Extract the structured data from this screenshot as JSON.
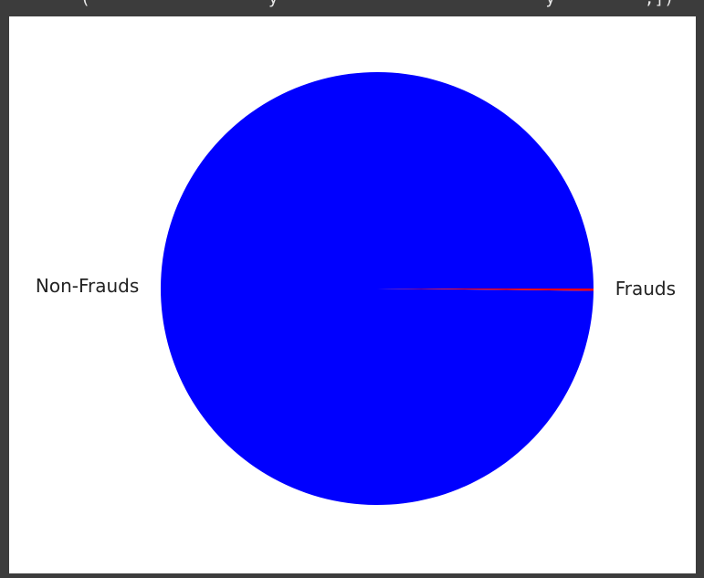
{
  "header": {
    "clipped_code_text": "(                  y                           y         ,])"
  },
  "chart_data": {
    "type": "pie",
    "labels": [
      "Non-Frauds",
      "Frauds"
    ],
    "values": [
      99.83,
      0.17
    ],
    "colors": [
      "#0000ff",
      "#ff0000"
    ],
    "startangle": 0,
    "counterclock": true
  }
}
